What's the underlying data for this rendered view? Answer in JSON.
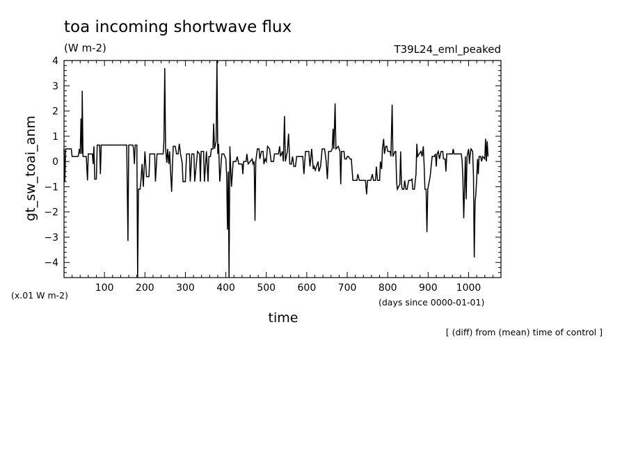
{
  "chart_data": {
    "type": "line",
    "title": "toa incoming shortwave flux",
    "units": "(W m-2)",
    "run_label": "T39L24_eml_peaked",
    "ylabel": "gt_sw_toai_anm",
    "y_scale_note": "(x.01 W m-2)",
    "xlabel": "time",
    "x_units_note": "(days since 0000-01-01)",
    "footnote": "[ (diff) from (mean) time of control ]",
    "xlim": [
      0,
      1080
    ],
    "ylim": [
      -4.6,
      4
    ],
    "x_ticks": [
      100,
      200,
      300,
      400,
      500,
      600,
      700,
      800,
      900,
      1000
    ],
    "y_ticks": [
      4,
      3,
      2,
      1,
      0,
      -1,
      -2,
      -3,
      -4
    ],
    "grid": false,
    "series": [
      {
        "values_xy": [
          [
            0,
            0.5
          ],
          [
            2,
            -0.8
          ],
          [
            4,
            0.5
          ],
          [
            18,
            0.5
          ],
          [
            20,
            0.2
          ],
          [
            35,
            0.2
          ],
          [
            38,
            0.5
          ],
          [
            40,
            0.3
          ],
          [
            42,
            1.7
          ],
          [
            44,
            0.3
          ],
          [
            45,
            2.8
          ],
          [
            47,
            0.2
          ],
          [
            55,
            0.2
          ],
          [
            58,
            -0.75
          ],
          [
            60,
            0.3
          ],
          [
            70,
            0.3
          ],
          [
            72,
            -0.1
          ],
          [
            74,
            0.6
          ],
          [
            76,
            -0.7
          ],
          [
            80,
            -0.7
          ],
          [
            82,
            0.65
          ],
          [
            88,
            0.65
          ],
          [
            90,
            -0.5
          ],
          [
            92,
            0.65
          ],
          [
            155,
            0.65
          ],
          [
            158,
            -3.15
          ],
          [
            160,
            0.65
          ],
          [
            170,
            0.65
          ],
          [
            172,
            0.5
          ],
          [
            174,
            -0.1
          ],
          [
            176,
            0.65
          ],
          [
            180,
            0.65
          ],
          [
            182,
            -4.6
          ],
          [
            184,
            -1.1
          ],
          [
            188,
            -1.1
          ],
          [
            190,
            -0.8
          ],
          [
            193,
            -0.1
          ],
          [
            196,
            -1.0
          ],
          [
            200,
            0.4
          ],
          [
            204,
            -0.6
          ],
          [
            210,
            -0.6
          ],
          [
            212,
            0.3
          ],
          [
            224,
            0.3
          ],
          [
            226,
            -0.8
          ],
          [
            230,
            0.3
          ],
          [
            245,
            0.3
          ],
          [
            247,
            0.8
          ],
          [
            249,
            3.7
          ],
          [
            251,
            0.5
          ],
          [
            254,
            -0.05
          ],
          [
            256,
            0.5
          ],
          [
            259,
            -0.1
          ],
          [
            261,
            0.4
          ],
          [
            264,
            -0.6
          ],
          [
            266,
            -1.2
          ],
          [
            268,
            -0.2
          ],
          [
            270,
            0.6
          ],
          [
            275,
            0.6
          ],
          [
            278,
            0.3
          ],
          [
            282,
            0.3
          ],
          [
            285,
            0.7
          ],
          [
            288,
            0.3
          ],
          [
            292,
            -0.05
          ],
          [
            294,
            -0.8
          ],
          [
            300,
            -0.8
          ],
          [
            303,
            0.3
          ],
          [
            310,
            0.3
          ],
          [
            312,
            -0.8
          ],
          [
            316,
            0.3
          ],
          [
            321,
            0.3
          ],
          [
            323,
            -0.8
          ],
          [
            330,
            0.4
          ],
          [
            335,
            0.3
          ],
          [
            337,
            -0.8
          ],
          [
            339,
            0.4
          ],
          [
            345,
            0.4
          ],
          [
            347,
            -0.8
          ],
          [
            352,
            0.4
          ],
          [
            356,
            -0.8
          ],
          [
            358,
            0.2
          ],
          [
            362,
            0.2
          ],
          [
            364,
            0.5
          ],
          [
            368,
            0.5
          ],
          [
            370,
            1.5
          ],
          [
            372,
            0.5
          ],
          [
            376,
            0.8
          ],
          [
            378,
            4.0
          ],
          [
            380,
            0.3
          ],
          [
            382,
            0.7
          ],
          [
            385,
            -0.8
          ],
          [
            390,
            0.3
          ],
          [
            395,
            0.3
          ],
          [
            400,
            0.1
          ],
          [
            402,
            -0.6
          ],
          [
            404,
            -2.7
          ],
          [
            406,
            -0.4
          ],
          [
            408,
            -4.6
          ],
          [
            410,
            0.6
          ],
          [
            412,
            -0.3
          ],
          [
            414,
            -1.0
          ],
          [
            418,
            0.0
          ],
          [
            425,
            0.0
          ],
          [
            428,
            0.2
          ],
          [
            432,
            -0.1
          ],
          [
            440,
            -0.1
          ],
          [
            442,
            -0.5
          ],
          [
            444,
            0.0
          ],
          [
            450,
            0.0
          ],
          [
            452,
            0.3
          ],
          [
            455,
            -0.1
          ],
          [
            460,
            0.0
          ],
          [
            465,
            0.1
          ],
          [
            467,
            -0.1
          ],
          [
            470,
            0.0
          ],
          [
            472,
            -2.35
          ],
          [
            474,
            0.0
          ],
          [
            478,
            0.5
          ],
          [
            482,
            0.5
          ],
          [
            484,
            0.1
          ],
          [
            488,
            0.4
          ],
          [
            492,
            0.4
          ],
          [
            494,
            -0.1
          ],
          [
            497,
            0.1
          ],
          [
            500,
            0.0
          ],
          [
            503,
            0.6
          ],
          [
            508,
            0.5
          ],
          [
            512,
            0.0
          ],
          [
            518,
            0.0
          ],
          [
            520,
            0.3
          ],
          [
            530,
            0.3
          ],
          [
            533,
            0.6
          ],
          [
            535,
            0.2
          ],
          [
            540,
            0.4
          ],
          [
            542,
            0.0
          ],
          [
            545,
            1.8
          ],
          [
            547,
            0.0
          ],
          [
            552,
            0.4
          ],
          [
            555,
            1.1
          ],
          [
            558,
            -0.1
          ],
          [
            562,
            -0.1
          ],
          [
            565,
            0.2
          ],
          [
            568,
            -0.2
          ],
          [
            572,
            -0.2
          ],
          [
            575,
            0.2
          ],
          [
            590,
            0.2
          ],
          [
            593,
            -0.5
          ],
          [
            597,
            0.4
          ],
          [
            605,
            0.4
          ],
          [
            608,
            -0.2
          ],
          [
            612,
            0.5
          ],
          [
            616,
            -0.3
          ],
          [
            618,
            -0.2
          ],
          [
            621,
            -0.35
          ],
          [
            624,
            -0.2
          ],
          [
            628,
            0.0
          ],
          [
            630,
            -0.4
          ],
          [
            634,
            -0.2
          ],
          [
            638,
            0.5
          ],
          [
            644,
            0.5
          ],
          [
            648,
            0.0
          ],
          [
            651,
            -0.7
          ],
          [
            654,
            0.4
          ],
          [
            660,
            0.4
          ],
          [
            663,
            0.5
          ],
          [
            665,
            1.3
          ],
          [
            667,
            0.5
          ],
          [
            670,
            2.3
          ],
          [
            672,
            0.5
          ],
          [
            678,
            0.6
          ],
          [
            682,
            0.4
          ],
          [
            684,
            -0.9
          ],
          [
            686,
            0.4
          ],
          [
            692,
            0.4
          ],
          [
            694,
            0.1
          ],
          [
            698,
            0.1
          ],
          [
            700,
            0.2
          ],
          [
            703,
            0.2
          ],
          [
            707,
            0.1
          ],
          [
            710,
            0.1
          ],
          [
            714,
            -0.75
          ],
          [
            720,
            -0.75
          ],
          [
            724,
            -0.75
          ],
          [
            726,
            -0.5
          ],
          [
            730,
            -0.75
          ],
          [
            745,
            -0.75
          ],
          [
            748,
            -1.3
          ],
          [
            750,
            -0.75
          ],
          [
            758,
            -0.75
          ],
          [
            762,
            -0.5
          ],
          [
            765,
            -0.75
          ],
          [
            770,
            -0.75
          ],
          [
            772,
            -0.2
          ],
          [
            775,
            -0.75
          ],
          [
            780,
            -0.75
          ],
          [
            782,
            0.0
          ],
          [
            785,
            -0.3
          ],
          [
            787,
            0.5
          ],
          [
            790,
            0.9
          ],
          [
            792,
            0.3
          ],
          [
            795,
            0.6
          ],
          [
            798,
            0.6
          ],
          [
            800,
            0.4
          ],
          [
            806,
            0.4
          ],
          [
            808,
            0.2
          ],
          [
            811,
            2.25
          ],
          [
            813,
            0.2
          ],
          [
            818,
            0.4
          ],
          [
            820,
            0.4
          ],
          [
            822,
            -0.8
          ],
          [
            824,
            -1.1
          ],
          [
            830,
            -0.9
          ],
          [
            832,
            0.4
          ],
          [
            834,
            -0.9
          ],
          [
            836,
            -1.1
          ],
          [
            840,
            -1.1
          ],
          [
            842,
            -0.75
          ],
          [
            845,
            -1.1
          ],
          [
            848,
            -1.1
          ],
          [
            852,
            -0.75
          ],
          [
            857,
            -0.75
          ],
          [
            860,
            -0.7
          ],
          [
            862,
            -1.1
          ],
          [
            866,
            -1.1
          ],
          [
            868,
            -0.8
          ],
          [
            870,
            -0.5
          ],
          [
            872,
            0.7
          ],
          [
            874,
            0.2
          ],
          [
            878,
            0.3
          ],
          [
            882,
            0.4
          ],
          [
            885,
            0.2
          ],
          [
            888,
            0.6
          ],
          [
            890,
            -0.1
          ],
          [
            892,
            -1.1
          ],
          [
            895,
            -1.1
          ],
          [
            897,
            -2.8
          ],
          [
            899,
            -1.1
          ],
          [
            905,
            -0.6
          ],
          [
            910,
            0.2
          ],
          [
            915,
            0.2
          ],
          [
            918,
            0.3
          ],
          [
            920,
            -0.2
          ],
          [
            922,
            0.3
          ],
          [
            925,
            0.4
          ],
          [
            928,
            0.1
          ],
          [
            932,
            0.4
          ],
          [
            936,
            0.4
          ],
          [
            938,
            0.1
          ],
          [
            942,
            0.1
          ],
          [
            944,
            -0.4
          ],
          [
            946,
            0.3
          ],
          [
            960,
            0.3
          ],
          [
            962,
            0.5
          ],
          [
            964,
            0.3
          ],
          [
            982,
            0.3
          ],
          [
            984,
            0.0
          ],
          [
            986,
            -0.7
          ],
          [
            988,
            -2.25
          ],
          [
            990,
            -1.0
          ],
          [
            992,
            0.2
          ],
          [
            994,
            -1.5
          ],
          [
            996,
            0.2
          ],
          [
            1000,
            0.5
          ],
          [
            1002,
            -0.1
          ],
          [
            1004,
            0.3
          ],
          [
            1006,
            0.5
          ],
          [
            1010,
            0.4
          ],
          [
            1012,
            -0.6
          ],
          [
            1014,
            -3.8
          ],
          [
            1016,
            -1.6
          ],
          [
            1018,
            -1.3
          ],
          [
            1020,
            -0.7
          ],
          [
            1022,
            0.1
          ],
          [
            1024,
            -0.5
          ],
          [
            1026,
            0.2
          ],
          [
            1030,
            0.2
          ],
          [
            1032,
            0.0
          ],
          [
            1035,
            0.2
          ],
          [
            1040,
            0.1
          ],
          [
            1042,
            0.9
          ],
          [
            1044,
            0.0
          ],
          [
            1046,
            0.8
          ],
          [
            1048,
            0.2
          ]
        ]
      }
    ]
  }
}
